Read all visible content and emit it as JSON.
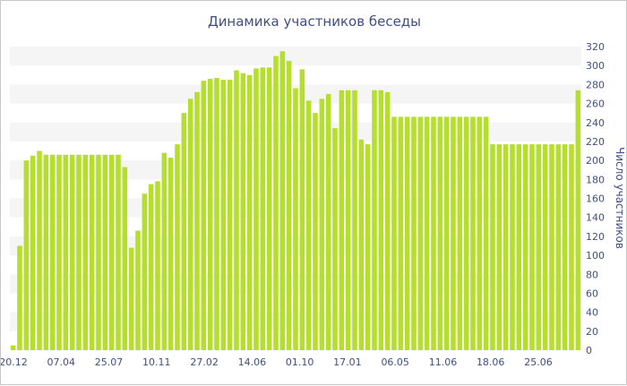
{
  "chart_data": {
    "type": "bar",
    "title": "Динамика участников беседы",
    "ylabel": "Число участников",
    "xlabel": "",
    "ylim": [
      0,
      320
    ],
    "y_ticks": [
      0,
      20,
      40,
      60,
      80,
      100,
      120,
      140,
      160,
      180,
      200,
      220,
      240,
      260,
      280,
      300,
      320
    ],
    "x_tick_labels": [
      "20.12",
      "07.04",
      "25.07",
      "10.11",
      "27.02",
      "14.06",
      "01.10",
      "17.01",
      "06.05",
      "11.06",
      "18.06",
      "25.06"
    ],
    "grid": "horizontal alternating bands",
    "legend": "none",
    "bar_color": "#b5df2a",
    "band_color": "#f5f5f5",
    "text_color": "#3f4f82",
    "values": [
      5,
      110,
      200,
      205,
      210,
      206,
      206,
      206,
      206,
      206,
      206,
      206,
      206,
      206,
      206,
      206,
      206,
      193,
      108,
      126,
      165,
      175,
      178,
      208,
      203,
      217,
      250,
      265,
      272,
      284,
      286,
      287,
      285,
      285,
      295,
      292,
      290,
      297,
      298,
      298,
      310,
      315,
      305,
      276,
      296,
      263,
      250,
      265,
      270,
      234,
      274,
      274,
      274,
      222,
      217,
      274,
      274,
      272,
      246,
      246,
      246,
      246,
      246,
      246,
      246,
      246,
      246,
      246,
      246,
      246,
      246,
      246,
      246,
      217,
      217,
      217,
      217,
      217,
      217,
      217,
      217,
      217,
      217,
      217,
      217,
      217,
      274
    ]
  }
}
